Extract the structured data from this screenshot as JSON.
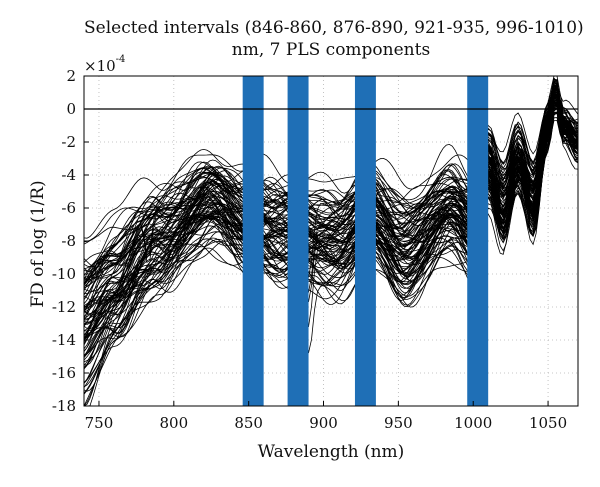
{
  "chart_data": {
    "type": "line",
    "title_line1": "Selected intervals (846-860, 876-890, 921-935, 996-1010)",
    "title_line2": "nm, 7 PLS components",
    "xlabel": "Wavelength (nm)",
    "ylabel": "FD of log (1/R)",
    "y_scale_base": "×10",
    "y_scale_exp": "-4",
    "xlim": [
      740,
      1070
    ],
    "ylim": [
      -18,
      2
    ],
    "xticks": [
      750,
      800,
      850,
      900,
      950,
      1000,
      1050
    ],
    "yticks": [
      2,
      0,
      -2,
      -4,
      -6,
      -8,
      -10,
      -12,
      -14,
      -16,
      -18
    ],
    "grid": true,
    "grid_style": "dotted",
    "line_color": "#000000",
    "highlight_color": "#1f6fb6",
    "highlighted_intervals": [
      [
        846,
        860
      ],
      [
        876,
        890
      ],
      [
        921,
        935
      ],
      [
        996,
        1010
      ]
    ],
    "series_count": 100,
    "series_description_x": [
      740,
      760,
      790,
      825,
      850,
      880,
      910,
      930,
      955,
      985,
      1000,
      1010,
      1020,
      1030,
      1040,
      1050,
      1055,
      1060,
      1070
    ],
    "series_mean_y": [
      -11.5,
      -10.2,
      -8.0,
      -5.5,
      -7.0,
      -7.5,
      -8.0,
      -6.5,
      -8.5,
      -6.0,
      -7.0,
      -3.5,
      -6.0,
      -3.0,
      -5.5,
      -1.0,
      1.0,
      -1.0,
      -2.0
    ]
  }
}
